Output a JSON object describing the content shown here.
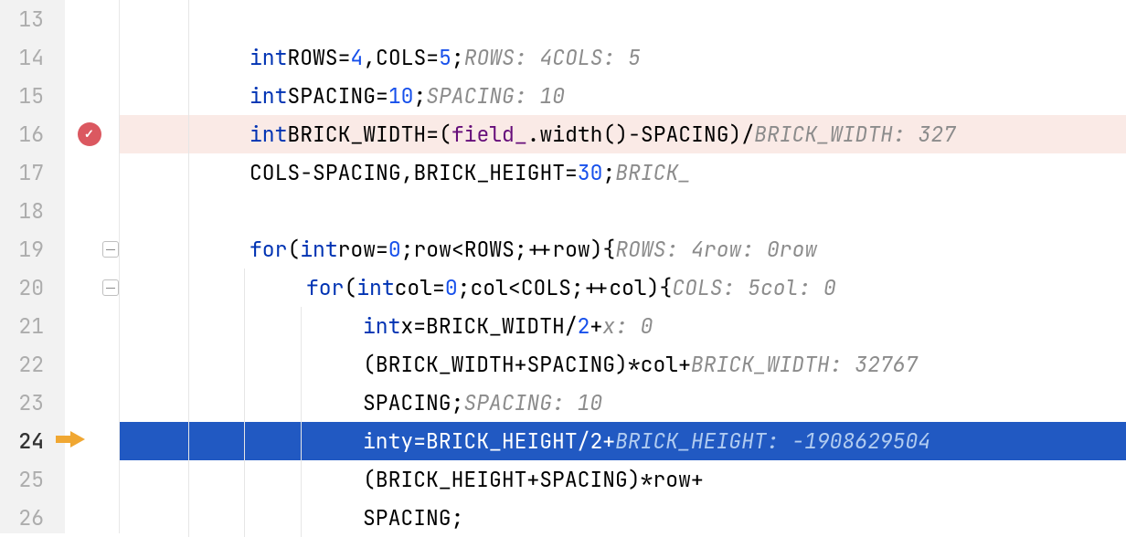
{
  "first_line_number": 13,
  "breakpoint_line": 16,
  "execution_line": 24,
  "fold_lines": [
    19,
    20
  ],
  "colors": {
    "keyword": "#0033b3",
    "number": "#1750eb",
    "field": "#660e7a",
    "hint": "#8c8c8c",
    "bp_bg": "#faeae6",
    "exec_bg": "#f7f0de",
    "current_bg": "#2159c2",
    "current_hint": "#b0cbf0",
    "gutter_bg": "#f2f2f2",
    "breakpoint": "#db5860",
    "exec_arrow": "#f0a732"
  },
  "lines": [
    {
      "n": 13,
      "indent": 1,
      "tokens": []
    },
    {
      "n": 14,
      "indent": 1,
      "tokens": [
        {
          "t": "kw",
          "v": "int"
        },
        {
          "t": "sp",
          "v": " "
        },
        {
          "t": "id",
          "v": "ROWS"
        },
        {
          "t": "sp",
          "v": " "
        },
        {
          "t": "pn",
          "v": "="
        },
        {
          "t": "sp",
          "v": " "
        },
        {
          "t": "num",
          "v": "4"
        },
        {
          "t": "pn",
          "v": ","
        },
        {
          "t": "sp",
          "v": " "
        },
        {
          "t": "id",
          "v": "COLS"
        },
        {
          "t": "sp",
          "v": " "
        },
        {
          "t": "pn",
          "v": "="
        },
        {
          "t": "sp",
          "v": " "
        },
        {
          "t": "num",
          "v": "5"
        },
        {
          "t": "pn",
          "v": ";"
        },
        {
          "t": "sp",
          "v": "   "
        },
        {
          "t": "hint",
          "v": "ROWS: 4"
        },
        {
          "t": "sp",
          "v": "    "
        },
        {
          "t": "hint",
          "v": "COLS: 5"
        }
      ]
    },
    {
      "n": 15,
      "indent": 1,
      "tokens": [
        {
          "t": "kw",
          "v": "int"
        },
        {
          "t": "sp",
          "v": " "
        },
        {
          "t": "id",
          "v": "SPACING"
        },
        {
          "t": "sp",
          "v": " "
        },
        {
          "t": "pn",
          "v": "="
        },
        {
          "t": "sp",
          "v": " "
        },
        {
          "t": "num",
          "v": "10"
        },
        {
          "t": "pn",
          "v": ";"
        },
        {
          "t": "sp",
          "v": "   "
        },
        {
          "t": "hint",
          "v": "SPACING: 10"
        }
      ]
    },
    {
      "n": 16,
      "indent": 1,
      "bp": true,
      "tokens": [
        {
          "t": "kw",
          "v": "int"
        },
        {
          "t": "sp",
          "v": " "
        },
        {
          "t": "id",
          "v": "BRICK_WIDTH"
        },
        {
          "t": "sp",
          "v": " "
        },
        {
          "t": "pn",
          "v": "="
        },
        {
          "t": "sp",
          "v": " "
        },
        {
          "t": "pn",
          "v": "("
        },
        {
          "t": "fld",
          "v": "field_"
        },
        {
          "t": "pn",
          "v": "."
        },
        {
          "t": "id",
          "v": "width"
        },
        {
          "t": "pn",
          "v": "()"
        },
        {
          "t": "sp",
          "v": " "
        },
        {
          "t": "pn",
          "v": "-"
        },
        {
          "t": "sp",
          "v": " "
        },
        {
          "t": "id",
          "v": "SPACING"
        },
        {
          "t": "pn",
          "v": ")"
        },
        {
          "t": "sp",
          "v": " "
        },
        {
          "t": "pn",
          "v": "/"
        },
        {
          "t": "sp",
          "v": "   "
        },
        {
          "t": "hint",
          "v": "BRICK_WIDTH: 327"
        }
      ]
    },
    {
      "n": 17,
      "indent": 1,
      "tokens": [
        {
          "t": "sp",
          "v": "                  "
        },
        {
          "t": "id",
          "v": "COLS"
        },
        {
          "t": "sp",
          "v": " "
        },
        {
          "t": "pn",
          "v": "-"
        },
        {
          "t": "sp",
          "v": " "
        },
        {
          "t": "id",
          "v": "SPACING"
        },
        {
          "t": "pn",
          "v": ","
        },
        {
          "t": "sp",
          "v": " "
        },
        {
          "t": "id",
          "v": "BRICK_HEIGHT"
        },
        {
          "t": "sp",
          "v": " "
        },
        {
          "t": "pn",
          "v": "="
        },
        {
          "t": "sp",
          "v": " "
        },
        {
          "t": "num",
          "v": "30"
        },
        {
          "t": "pn",
          "v": ";"
        },
        {
          "t": "sp",
          "v": "   "
        },
        {
          "t": "hint",
          "v": "BRICK_"
        }
      ]
    },
    {
      "n": 18,
      "indent": 1,
      "tokens": []
    },
    {
      "n": 19,
      "indent": 1,
      "fold": true,
      "tokens": [
        {
          "t": "kw",
          "v": "for"
        },
        {
          "t": "sp",
          "v": " "
        },
        {
          "t": "pn",
          "v": "("
        },
        {
          "t": "kw",
          "v": "int"
        },
        {
          "t": "sp",
          "v": " "
        },
        {
          "t": "id",
          "v": "row"
        },
        {
          "t": "sp",
          "v": " "
        },
        {
          "t": "pn",
          "v": "="
        },
        {
          "t": "sp",
          "v": " "
        },
        {
          "t": "num",
          "v": "0"
        },
        {
          "t": "pn",
          "v": ";"
        },
        {
          "t": "sp",
          "v": " "
        },
        {
          "t": "id",
          "v": "row"
        },
        {
          "t": "sp",
          "v": " "
        },
        {
          "t": "pn",
          "v": "<"
        },
        {
          "t": "sp",
          "v": " "
        },
        {
          "t": "id",
          "v": "ROWS"
        },
        {
          "t": "pn",
          "v": ";"
        },
        {
          "t": "sp",
          "v": " "
        },
        {
          "t": "pn",
          "v": "++"
        },
        {
          "t": "id",
          "v": "row"
        },
        {
          "t": "pn",
          "v": ")"
        },
        {
          "t": "sp",
          "v": " "
        },
        {
          "t": "pn",
          "v": "{"
        },
        {
          "t": "sp",
          "v": "   "
        },
        {
          "t": "hint",
          "v": "ROWS: 4"
        },
        {
          "t": "sp",
          "v": "    "
        },
        {
          "t": "hint",
          "v": "row: 0"
        },
        {
          "t": "sp",
          "v": "    "
        },
        {
          "t": "hint",
          "v": "row"
        }
      ]
    },
    {
      "n": 20,
      "indent": 2,
      "fold": true,
      "tokens": [
        {
          "t": "kw",
          "v": "for"
        },
        {
          "t": "sp",
          "v": " "
        },
        {
          "t": "pn",
          "v": "("
        },
        {
          "t": "kw",
          "v": "int"
        },
        {
          "t": "sp",
          "v": " "
        },
        {
          "t": "id",
          "v": "col"
        },
        {
          "t": "sp",
          "v": " "
        },
        {
          "t": "pn",
          "v": "="
        },
        {
          "t": "sp",
          "v": " "
        },
        {
          "t": "num",
          "v": "0"
        },
        {
          "t": "pn",
          "v": ";"
        },
        {
          "t": "sp",
          "v": " "
        },
        {
          "t": "id",
          "v": "col"
        },
        {
          "t": "sp",
          "v": " "
        },
        {
          "t": "pn",
          "v": "<"
        },
        {
          "t": "sp",
          "v": " "
        },
        {
          "t": "id",
          "v": "COLS"
        },
        {
          "t": "pn",
          "v": ";"
        },
        {
          "t": "sp",
          "v": " "
        },
        {
          "t": "pn",
          "v": "++"
        },
        {
          "t": "id",
          "v": "col"
        },
        {
          "t": "pn",
          "v": ")"
        },
        {
          "t": "sp",
          "v": " "
        },
        {
          "t": "pn",
          "v": "{"
        },
        {
          "t": "sp",
          "v": "   "
        },
        {
          "t": "hint",
          "v": "COLS: 5"
        },
        {
          "t": "sp",
          "v": "    "
        },
        {
          "t": "hint",
          "v": "col: 0"
        }
      ]
    },
    {
      "n": 21,
      "indent": 3,
      "tokens": [
        {
          "t": "kw",
          "v": "int"
        },
        {
          "t": "sp",
          "v": " "
        },
        {
          "t": "id",
          "v": "x"
        },
        {
          "t": "sp",
          "v": " "
        },
        {
          "t": "pn",
          "v": "="
        },
        {
          "t": "sp",
          "v": " "
        },
        {
          "t": "id",
          "v": "BRICK_WIDTH"
        },
        {
          "t": "sp",
          "v": " "
        },
        {
          "t": "pn",
          "v": "/"
        },
        {
          "t": "sp",
          "v": " "
        },
        {
          "t": "num",
          "v": "2"
        },
        {
          "t": "sp",
          "v": " "
        },
        {
          "t": "pn",
          "v": "+"
        },
        {
          "t": "sp",
          "v": "   "
        },
        {
          "t": "hint",
          "v": "x: 0"
        }
      ]
    },
    {
      "n": 22,
      "indent": 3,
      "tokens": [
        {
          "t": "sp",
          "v": "    "
        },
        {
          "t": "pn",
          "v": "("
        },
        {
          "t": "id",
          "v": "BRICK_WIDTH"
        },
        {
          "t": "sp",
          "v": " "
        },
        {
          "t": "pn",
          "v": "+"
        },
        {
          "t": "sp",
          "v": " "
        },
        {
          "t": "id",
          "v": "SPACING"
        },
        {
          "t": "pn",
          "v": ")"
        },
        {
          "t": "sp",
          "v": " "
        },
        {
          "t": "pn",
          "v": "*"
        },
        {
          "t": "sp",
          "v": " "
        },
        {
          "t": "id",
          "v": "col"
        },
        {
          "t": "sp",
          "v": " "
        },
        {
          "t": "pn",
          "v": "+"
        },
        {
          "t": "sp",
          "v": "   "
        },
        {
          "t": "hint",
          "v": "BRICK_WIDTH: 32767"
        }
      ]
    },
    {
      "n": 23,
      "indent": 3,
      "tokens": [
        {
          "t": "sp",
          "v": "    "
        },
        {
          "t": "id",
          "v": "SPACING"
        },
        {
          "t": "pn",
          "v": ";"
        },
        {
          "t": "sp",
          "v": "   "
        },
        {
          "t": "hint",
          "v": "SPACING: 10"
        }
      ]
    },
    {
      "n": 24,
      "indent": 3,
      "current": true,
      "tokens": [
        {
          "t": "kw",
          "v": "int"
        },
        {
          "t": "sp",
          "v": " "
        },
        {
          "t": "id",
          "v": "y"
        },
        {
          "t": "sp",
          "v": " "
        },
        {
          "t": "pn",
          "v": "="
        },
        {
          "t": "sp",
          "v": " "
        },
        {
          "t": "id",
          "v": "BRICK_HEIGHT"
        },
        {
          "t": "sp",
          "v": " "
        },
        {
          "t": "pn",
          "v": "/"
        },
        {
          "t": "sp",
          "v": " "
        },
        {
          "t": "num",
          "v": "2"
        },
        {
          "t": "sp",
          "v": " "
        },
        {
          "t": "pn",
          "v": "+"
        },
        {
          "t": "sp",
          "v": "   "
        },
        {
          "t": "hint",
          "v": "BRICK_HEIGHT: -1908629504"
        }
      ]
    },
    {
      "n": 25,
      "indent": 3,
      "tokens": [
        {
          "t": "sp",
          "v": "    "
        },
        {
          "t": "pn",
          "v": "("
        },
        {
          "t": "id",
          "v": "BRICK_HEIGHT"
        },
        {
          "t": "sp",
          "v": " "
        },
        {
          "t": "pn",
          "v": "+"
        },
        {
          "t": "sp",
          "v": " "
        },
        {
          "t": "id",
          "v": "SPACING"
        },
        {
          "t": "pn",
          "v": ")"
        },
        {
          "t": "sp",
          "v": " "
        },
        {
          "t": "pn",
          "v": "*"
        },
        {
          "t": "sp",
          "v": " "
        },
        {
          "t": "id",
          "v": "row"
        },
        {
          "t": "sp",
          "v": " "
        },
        {
          "t": "pn",
          "v": "+"
        }
      ]
    },
    {
      "n": 26,
      "indent": 3,
      "tokens": [
        {
          "t": "sp",
          "v": "    "
        },
        {
          "t": "id",
          "v": "SPACING"
        },
        {
          "t": "pn",
          "v": ";"
        }
      ]
    }
  ]
}
